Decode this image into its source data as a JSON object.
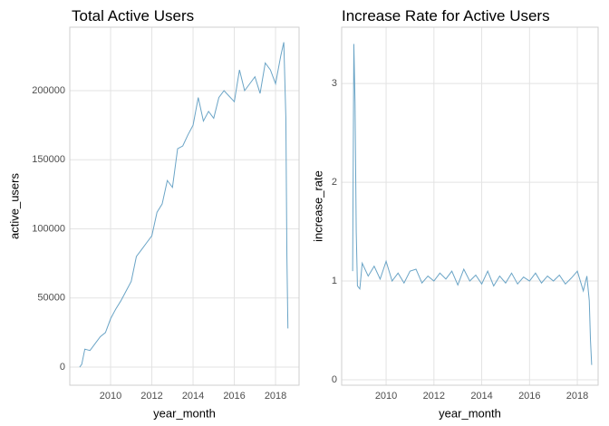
{
  "chart_data": [
    {
      "type": "line",
      "title": "Total Active Users",
      "x_label": "year_month",
      "y_label": "active_users",
      "color": "#6aa4c6",
      "grid": true,
      "xlim": [
        2008.02,
        2019.14
      ],
      "ylim": [
        -13100,
        245900
      ],
      "xticks": [
        2010,
        2012,
        2014,
        2016,
        2018
      ],
      "yticks": [
        0,
        50000,
        100000,
        150000,
        200000
      ],
      "x": [
        2008.5,
        2008.6,
        2008.75,
        2009.0,
        2009.25,
        2009.5,
        2009.75,
        2010.0,
        2010.25,
        2010.5,
        2010.75,
        2011.0,
        2011.25,
        2011.5,
        2011.75,
        2012.0,
        2012.25,
        2012.5,
        2012.75,
        2013.0,
        2013.25,
        2013.5,
        2013.75,
        2014.0,
        2014.25,
        2014.5,
        2014.75,
        2015.0,
        2015.25,
        2015.5,
        2015.75,
        2016.0,
        2016.25,
        2016.5,
        2016.75,
        2017.0,
        2017.25,
        2017.5,
        2017.75,
        2018.0,
        2018.25,
        2018.4,
        2018.5,
        2018.55,
        2018.6
      ],
      "values": [
        0,
        2000,
        13000,
        12000,
        17000,
        22000,
        25000,
        35000,
        42000,
        48000,
        55000,
        62000,
        80000,
        85000,
        90000,
        95000,
        112000,
        118000,
        135000,
        130000,
        158000,
        160000,
        168000,
        175000,
        195000,
        178000,
        185000,
        180000,
        195000,
        200000,
        196000,
        192000,
        215000,
        200000,
        205000,
        210000,
        198000,
        220000,
        215000,
        205000,
        225000,
        235000,
        180000,
        80000,
        28000
      ]
    },
    {
      "type": "line",
      "title": "Increase Rate for Active Users",
      "x_label": "year_month",
      "y_label": "increase_rate",
      "color": "#6aa4c6",
      "grid": true,
      "xlim": [
        2008.14,
        2018.87
      ],
      "ylim": [
        -0.055,
        3.57
      ],
      "xticks": [
        2010,
        2012,
        2014,
        2016,
        2018
      ],
      "yticks": [
        0,
        1,
        2,
        3
      ],
      "x": [
        2008.6,
        2008.65,
        2008.7,
        2008.75,
        2008.8,
        2008.9,
        2009.0,
        2009.25,
        2009.5,
        2009.75,
        2010.0,
        2010.25,
        2010.5,
        2010.75,
        2011.0,
        2011.25,
        2011.5,
        2011.75,
        2012.0,
        2012.25,
        2012.5,
        2012.75,
        2013.0,
        2013.25,
        2013.5,
        2013.75,
        2014.0,
        2014.25,
        2014.5,
        2014.75,
        2015.0,
        2015.25,
        2015.5,
        2015.75,
        2016.0,
        2016.25,
        2016.5,
        2016.75,
        2017.0,
        2017.25,
        2017.5,
        2017.75,
        2018.0,
        2018.25,
        2018.4,
        2018.5,
        2018.55,
        2018.6
      ],
      "values": [
        1.1,
        3.4,
        2.8,
        1.5,
        0.95,
        0.92,
        1.18,
        1.05,
        1.15,
        1.02,
        1.2,
        1.0,
        1.08,
        0.98,
        1.1,
        1.12,
        0.98,
        1.05,
        1.0,
        1.08,
        1.02,
        1.1,
        0.96,
        1.12,
        1.0,
        1.06,
        0.97,
        1.1,
        0.95,
        1.05,
        0.98,
        1.08,
        0.97,
        1.04,
        1.0,
        1.08,
        0.98,
        1.05,
        1.0,
        1.06,
        0.97,
        1.03,
        1.1,
        0.9,
        1.05,
        0.8,
        0.4,
        0.15
      ]
    }
  ]
}
